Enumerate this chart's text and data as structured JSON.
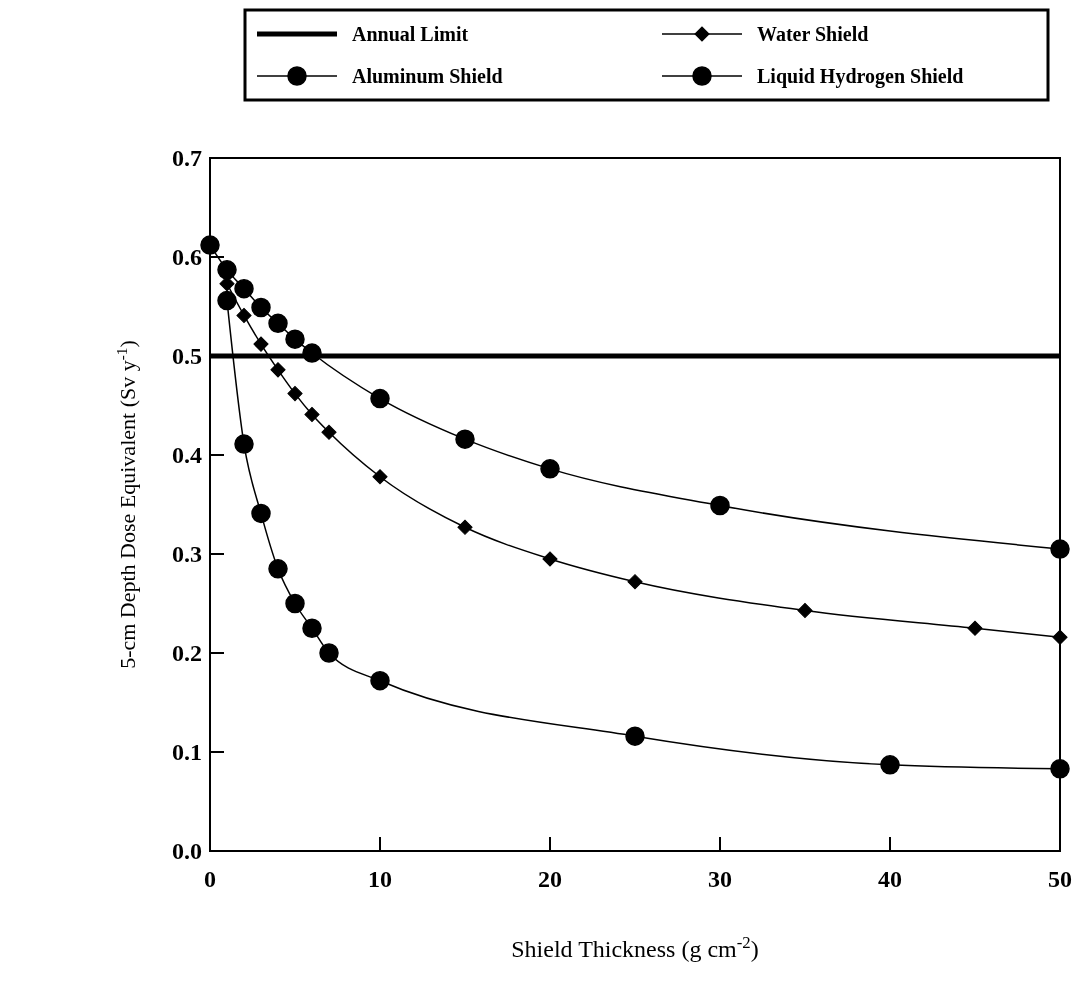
{
  "chart_data": {
    "type": "line",
    "xlabel": "Shield Thickness (g cm$^{-2}$)",
    "ylabel": "5-cm Depth Dose Equivalent (Sv y$^{-1}$)",
    "xlim": [
      0,
      50
    ],
    "xticks": [
      0,
      10,
      20,
      30,
      40,
      50
    ],
    "ylim": [
      0,
      0.7
    ],
    "yticks": [
      {
        "value": 0,
        "label": "0.0"
      },
      {
        "value": 0.1,
        "label": "0.1"
      },
      {
        "value": 0.2,
        "label": "0.2"
      },
      {
        "value": 0.3,
        "label": "0.3"
      },
      {
        "value": 0.4,
        "label": "0.4"
      },
      {
        "value": 0.5,
        "label": "0.5"
      },
      {
        "value": 0.6,
        "label": "0.6"
      },
      {
        "value": 0.7,
        "label": "0.7"
      }
    ],
    "grid": false,
    "legend": "top",
    "line_style": "solid",
    "ref_lines": [
      {
        "axis": "y",
        "value": 0.5,
        "label": "Annual Limit",
        "color": "#000000"
      }
    ],
    "series": [
      {
        "name": "Water Shield",
        "color": "#000000",
        "marker": "diamond",
        "x": [
          1,
          2,
          3,
          4,
          5,
          6,
          7,
          10,
          15,
          20,
          25,
          35,
          45,
          50
        ],
        "values": [
          0.573,
          0.541,
          0.512,
          0.486,
          0.462,
          0.441,
          0.423,
          0.378,
          0.327,
          0.295,
          0.272,
          0.243,
          0.225,
          0.216
        ]
      },
      {
        "name": "Aluminum Shield",
        "color": "#000000",
        "marker": "circle",
        "x": [
          0,
          1,
          2,
          3,
          4,
          5,
          6,
          10,
          15,
          20,
          30,
          50
        ],
        "values": [
          0.612,
          0.587,
          0.568,
          0.549,
          0.533,
          0.517,
          0.503,
          0.457,
          0.416,
          0.386,
          0.349,
          0.305
        ]
      },
      {
        "name": "Liquid Hydrogen Shield",
        "color": "#000000",
        "marker": "circle",
        "x": [
          1,
          2,
          3,
          4,
          5,
          6,
          7,
          10,
          25,
          40,
          50
        ],
        "values": [
          0.556,
          0.411,
          0.341,
          0.285,
          0.25,
          0.225,
          0.2,
          0.172,
          0.116,
          0.087,
          0.083
        ]
      }
    ]
  }
}
